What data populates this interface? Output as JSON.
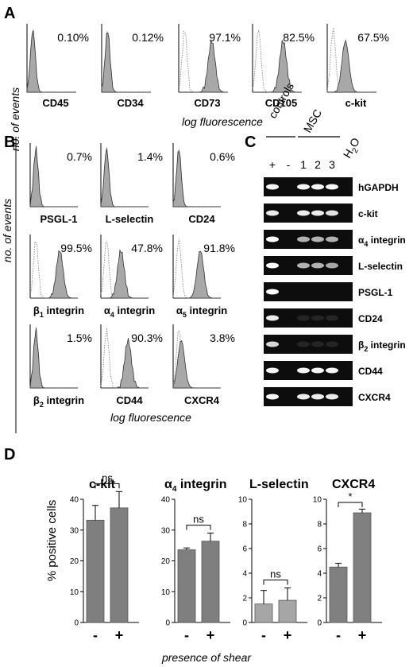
{
  "panels": {
    "A": {
      "label": "A",
      "ylabel": "no. of events",
      "xlabel": "log fluorescence",
      "markers": [
        {
          "name": "CD45",
          "pct": "0.10%",
          "shift": 0.0
        },
        {
          "name": "CD34",
          "pct": "0.12%",
          "shift": 0.0
        },
        {
          "name": "CD73",
          "pct": "97.1%",
          "shift": 0.55
        },
        {
          "name": "CD105",
          "pct": "82.5%",
          "shift": 0.5
        },
        {
          "name": "c-kit",
          "pct": "67.5%",
          "shift": 0.25
        }
      ]
    },
    "B": {
      "label": "B",
      "ylabel": "no. of events",
      "xlabel": "log fluorescence",
      "markers": [
        {
          "name": "PSGL-1",
          "pct": "0.7%",
          "shift": 0.0
        },
        {
          "name": "L-selectin",
          "pct": "1.4%",
          "shift": 0.0
        },
        {
          "name": "CD24",
          "pct": "0.6%",
          "shift": 0.0
        },
        {
          "name": "β1 integrin",
          "base": "β",
          "sub": "1",
          "rest": " integrin",
          "pct": "99.5%",
          "shift": 0.5
        },
        {
          "name": "α4 integrin",
          "base": "α",
          "sub": "4",
          "rest": " integrin",
          "pct": "47.8%",
          "shift": 0.3
        },
        {
          "name": "α5 integrin",
          "base": "α",
          "sub": "5",
          "rest": " integrin",
          "pct": "91.8%",
          "shift": 0.45
        },
        {
          "name": "β2 integrin",
          "base": "β",
          "sub": "2",
          "rest": " integrin",
          "pct": "1.5%",
          "shift": 0.0
        },
        {
          "name": "CD44",
          "pct": "90.3%",
          "shift": 0.45
        },
        {
          "name": "CXCR4",
          "pct": "3.8%",
          "shift": 0.05
        }
      ]
    },
    "C": {
      "label": "C",
      "group_controls": "controls",
      "group_msc": "MSC",
      "lanes": [
        "+",
        "-",
        "1",
        "2",
        "3"
      ],
      "water": "H2O",
      "water_base": "H",
      "water_sub": "2",
      "water_rest": "O",
      "genes": [
        {
          "name": "hGAPDH",
          "bands": [
            0.95,
            0,
            0.95,
            0.95,
            0.95,
            0
          ]
        },
        {
          "name": "c-kit",
          "bands": [
            0.9,
            0,
            0.9,
            0.9,
            0.85,
            0
          ]
        },
        {
          "name": "α4 integrin",
          "base": "α",
          "sub": "4",
          "rest": " integrin",
          "bands": [
            1.0,
            0,
            0.6,
            0.6,
            0.6,
            0
          ]
        },
        {
          "name": "L-selectin",
          "bands": [
            1.0,
            0,
            0.6,
            0.6,
            0.55,
            0
          ]
        },
        {
          "name": "PSGL-1",
          "bands": [
            1.0,
            0,
            0,
            0,
            0,
            0
          ]
        },
        {
          "name": "CD24",
          "bands": [
            0.9,
            0,
            0.12,
            0.12,
            0.12,
            0
          ]
        },
        {
          "name": "β2 integrin",
          "base": "β",
          "sub": "2",
          "rest": " integrin",
          "bands": [
            0.8,
            0,
            0.12,
            0.12,
            0.12,
            0
          ]
        },
        {
          "name": "CD44",
          "bands": [
            0.95,
            0,
            0.95,
            0.95,
            0.95,
            0
          ]
        },
        {
          "name": "CXCR4",
          "bands": [
            0.95,
            0,
            0.9,
            0.9,
            0.9,
            0
          ]
        }
      ]
    },
    "D": {
      "label": "D",
      "ylabel": "% positive cells",
      "xlabel": "presence of shear"
    }
  },
  "chart_data": [
    {
      "type": "bar",
      "title": "c-kit",
      "categories": [
        "-",
        "+"
      ],
      "values": [
        33.2,
        37.2
      ],
      "errors": [
        4.8,
        5.3
      ],
      "ylim": [
        0,
        40
      ],
      "yticks": [
        0,
        10,
        20,
        30,
        40
      ],
      "significance": "ns",
      "ylabel": "% positive cells",
      "xlabel": "presence of shear",
      "color": "#7f7f7f"
    },
    {
      "type": "bar",
      "title": "α4 integrin",
      "title_base": "α",
      "title_sub": "4",
      "title_rest": " integrin",
      "categories": [
        "-",
        "+"
      ],
      "values": [
        23.6,
        26.4
      ],
      "errors": [
        0.6,
        2.6
      ],
      "ylim": [
        0,
        40
      ],
      "yticks": [
        0,
        10,
        20,
        30,
        40
      ],
      "significance": "ns",
      "color": "#7f7f7f"
    },
    {
      "type": "bar",
      "title": "L-selectin",
      "categories": [
        "-",
        "+"
      ],
      "values": [
        1.5,
        1.8
      ],
      "errors": [
        1.1,
        1.0
      ],
      "ylim": [
        0,
        10
      ],
      "yticks": [
        0,
        2,
        4,
        6,
        8,
        10
      ],
      "significance": "ns",
      "color": "#a6a6a6"
    },
    {
      "type": "bar",
      "title": "CXCR4",
      "categories": [
        "-",
        "+"
      ],
      "values": [
        4.5,
        8.9
      ],
      "errors": [
        0.3,
        0.3
      ],
      "ylim": [
        0,
        10
      ],
      "yticks": [
        0,
        2,
        4,
        6,
        8,
        10
      ],
      "significance": "*",
      "color": "#808080"
    }
  ]
}
